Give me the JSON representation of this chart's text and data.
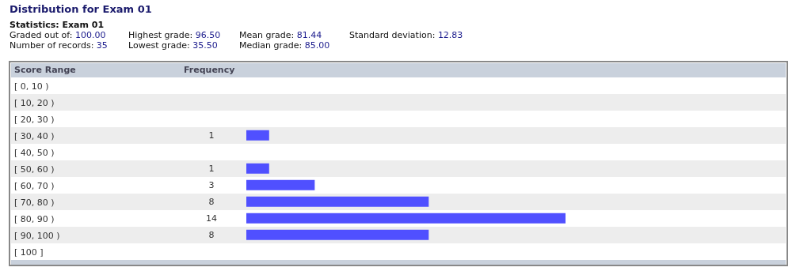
{
  "chart_data": {
    "type": "bar",
    "orientation": "horizontal",
    "title": "Distribution for Exam 01",
    "subtitle": "Statistics: Exam 01",
    "annotations": [
      "Graded out of: 100.00",
      "Number of records: 35",
      "Highest grade: 96.50",
      "Lowest grade: 35.50",
      "Mean grade: 81.44",
      "Median grade: 85.00",
      "Standard deviation: 12.83"
    ],
    "ylabel": "Score Range",
    "xlabel": "Frequency",
    "categories": [
      "[ 0, 10 )",
      "[ 10, 20 )",
      "[ 20, 30 )",
      "[ 30, 40 )",
      "[ 40, 50 )",
      "[ 50, 60 )",
      "[ 60, 70 )",
      "[ 70, 80 )",
      "[ 80, 90 )",
      "[ 90, 100 )",
      "[ 100 ]"
    ],
    "values": [
      0,
      0,
      0,
      1,
      0,
      1,
      3,
      8,
      14,
      8,
      0
    ],
    "value_labels": [
      null,
      null,
      null,
      "1",
      null,
      "1",
      "3",
      "8",
      "14",
      "8",
      null
    ],
    "color": "#5050ff",
    "tick_labels": "y"
  }
}
